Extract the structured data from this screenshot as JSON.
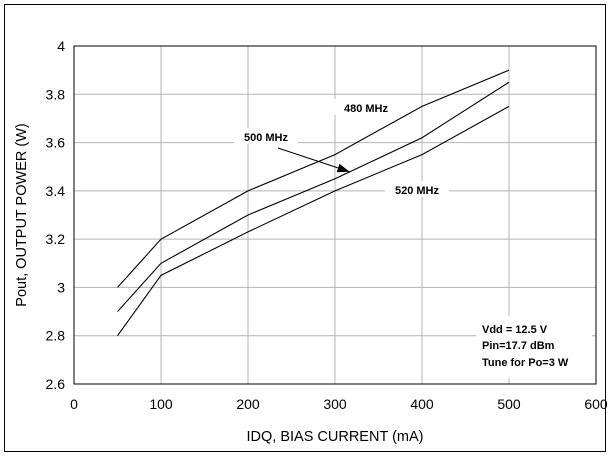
{
  "chart_data": {
    "type": "line",
    "title": "",
    "xlabel": "IDQ, BIAS CURRENT (mA)",
    "ylabel": "Pout, OUTPUT POWER (W)",
    "xlim": [
      0,
      600
    ],
    "ylim": [
      2.6,
      4.0
    ],
    "xticks": [
      0,
      100,
      200,
      300,
      400,
      500,
      600
    ],
    "yticks": [
      2.6,
      2.8,
      3.0,
      3.2,
      3.4,
      3.6,
      3.8,
      4.0
    ],
    "ytick_labels": [
      "2.6",
      "2.8",
      "3",
      "3.2",
      "3.4",
      "3.6",
      "3.8",
      "4"
    ],
    "grid": true,
    "x": [
      50,
      100,
      200,
      300,
      400,
      500
    ],
    "series": [
      {
        "name": "480 MHz",
        "values": [
          3.0,
          3.2,
          3.4,
          3.55,
          3.75,
          3.9
        ]
      },
      {
        "name": "500 MHz",
        "values": [
          2.9,
          3.1,
          3.3,
          3.45,
          3.62,
          3.85
        ]
      },
      {
        "name": "520 MHz",
        "values": [
          2.8,
          3.05,
          3.23,
          3.4,
          3.55,
          3.75
        ]
      }
    ],
    "annotations": [
      "Vdd = 12.5 V",
      "Pin=17.7 dBm",
      "Tune for Po=3 W"
    ]
  }
}
